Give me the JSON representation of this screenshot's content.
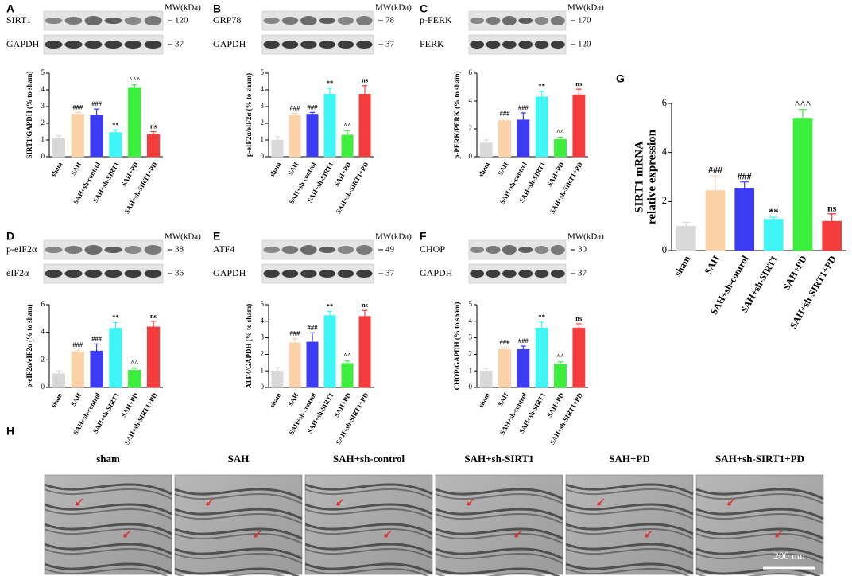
{
  "chart_data": [
    {
      "type": "bar",
      "panel": "A",
      "blot": {
        "mw_label": "MW(kDa)",
        "rows": [
          {
            "name": "SIRT1",
            "mw": 120
          },
          {
            "name": "GAPDH",
            "mw": 37
          }
        ]
      },
      "y_label": "SIRT1/GAPDH (% to sham)",
      "categories": [
        "sham",
        "SAH",
        "SAH+sh-control",
        "SAH+sh-SIRT1",
        "SAH+PD",
        "SAH+sh-SIRT1+PD"
      ],
      "values": [
        1.1,
        2.55,
        2.5,
        1.45,
        4.15,
        1.35
      ],
      "errors": [
        0.15,
        0.1,
        0.35,
        0.15,
        0.15,
        0.15
      ],
      "annotations": [
        null,
        "###",
        "###",
        "**",
        "^^^",
        "ns"
      ],
      "colors": [
        "#d9d9d9",
        "#fcd2a8",
        "#3c3cf5",
        "#3ff5f5",
        "#3cef3c",
        "#f53c3c"
      ],
      "ylim": [
        0,
        5
      ],
      "yticks": [
        0,
        1,
        2,
        3,
        4,
        5
      ]
    },
    {
      "type": "bar",
      "panel": "B",
      "blot": {
        "mw_label": "MW(kDa)",
        "rows": [
          {
            "name": "GRP78",
            "mw": 78
          },
          {
            "name": "GAPDH",
            "mw": 37
          }
        ]
      },
      "y_label": "p-eIF2α/eIF2α (% to sham)",
      "categories": [
        "sham",
        "SAH",
        "SAH+sh-control",
        "SAH+sh-SIRT1",
        "SAH+PD",
        "SAH+sh-SIRT1+PD"
      ],
      "values": [
        1.0,
        2.5,
        2.55,
        3.75,
        1.3,
        3.75
      ],
      "errors": [
        0.2,
        0.1,
        0.1,
        0.35,
        0.25,
        0.5
      ],
      "annotations": [
        null,
        "###",
        "###",
        "**",
        "^^",
        "ns"
      ],
      "colors": [
        "#d9d9d9",
        "#fcd2a8",
        "#3c3cf5",
        "#3ff5f5",
        "#3cef3c",
        "#f53c3c"
      ],
      "ylim": [
        0,
        5
      ],
      "yticks": [
        0,
        1,
        2,
        3,
        4,
        5
      ]
    },
    {
      "type": "bar",
      "panel": "C",
      "blot": {
        "mw_label": "MW(kDa)",
        "rows": [
          {
            "name": "p-PERK",
            "mw": 170
          },
          {
            "name": "PERK",
            "mw": 120
          }
        ]
      },
      "y_label": "p-PERK/PERK (% to sham)",
      "categories": [
        "sham",
        "SAH",
        "SAH+sh-control",
        "SAH+sh-SIRT1",
        "SAH+PD",
        "SAH+sh-SIRT1+PD"
      ],
      "values": [
        1.0,
        2.6,
        2.65,
        4.3,
        1.25,
        4.45
      ],
      "errors": [
        0.2,
        0.1,
        0.5,
        0.4,
        0.15,
        0.4
      ],
      "annotations": [
        null,
        "###",
        "###",
        "**",
        "^^",
        "ns"
      ],
      "colors": [
        "#d9d9d9",
        "#fcd2a8",
        "#3c3cf5",
        "#3ff5f5",
        "#3cef3c",
        "#f53c3c"
      ],
      "ylim": [
        0,
        6
      ],
      "yticks": [
        0,
        2,
        4,
        6
      ]
    },
    {
      "type": "bar",
      "panel": "D",
      "blot": {
        "mw_label": "MW(kDa)",
        "rows": [
          {
            "name": "p-eIF2α",
            "mw": 38
          },
          {
            "name": "eIF2α",
            "mw": 36
          }
        ]
      },
      "y_label": "p-eIF2α/eIF2α (% to sham)",
      "categories": [
        "sham",
        "SAH",
        "SAH+sh-control",
        "SAH+sh-SIRT1",
        "SAH+PD",
        "SAH+sh-SIRT1+PD"
      ],
      "values": [
        1.0,
        2.6,
        2.65,
        4.3,
        1.25,
        4.4
      ],
      "errors": [
        0.2,
        0.1,
        0.5,
        0.4,
        0.15,
        0.4
      ],
      "annotations": [
        null,
        "###",
        "###",
        "**",
        "^^",
        "ns"
      ],
      "colors": [
        "#d9d9d9",
        "#fcd2a8",
        "#3c3cf5",
        "#3ff5f5",
        "#3cef3c",
        "#f53c3c"
      ],
      "ylim": [
        0,
        6
      ],
      "yticks": [
        0,
        2,
        4,
        6
      ]
    },
    {
      "type": "bar",
      "panel": "E",
      "blot": {
        "mw_label": "MW(kDa)",
        "rows": [
          {
            "name": "ATF4",
            "mw": 49
          },
          {
            "name": "GAPDH",
            "mw": 37
          }
        ]
      },
      "y_label": "ATF4/GAPDH (% to sham)",
      "categories": [
        "sham",
        "SAH",
        "SAH+sh-control",
        "SAH+sh-SIRT1",
        "SAH+PD",
        "SAH+sh-SIRT1+PD"
      ],
      "values": [
        1.0,
        2.7,
        2.75,
        4.35,
        1.45,
        4.3
      ],
      "errors": [
        0.2,
        0.25,
        0.55,
        0.25,
        0.15,
        0.35
      ],
      "annotations": [
        null,
        "###",
        "###",
        "**",
        "^^",
        "ns"
      ],
      "colors": [
        "#d9d9d9",
        "#fcd2a8",
        "#3c3cf5",
        "#3ff5f5",
        "#3cef3c",
        "#f53c3c"
      ],
      "ylim": [
        0,
        5
      ],
      "yticks": [
        0,
        1,
        2,
        3,
        4,
        5
      ]
    },
    {
      "type": "bar",
      "panel": "F",
      "blot": {
        "mw_label": "MW(kDa)",
        "rows": [
          {
            "name": "CHOP",
            "mw": 30
          },
          {
            "name": "GAPDH",
            "mw": 37
          }
        ]
      },
      "y_label": "CHOP/GAPDH (% to sham)",
      "categories": [
        "sham",
        "SAH",
        "SAH+sh-control",
        "SAH+sh-SIRT1",
        "SAH+PD",
        "SAH+sh-SIRT1+PD"
      ],
      "values": [
        1.0,
        2.3,
        2.3,
        3.6,
        1.4,
        3.6
      ],
      "errors": [
        0.15,
        0.1,
        0.2,
        0.35,
        0.15,
        0.25
      ],
      "annotations": [
        null,
        "###",
        "###",
        "**",
        "^^",
        "ns"
      ],
      "colors": [
        "#d9d9d9",
        "#fcd2a8",
        "#3c3cf5",
        "#3ff5f5",
        "#3cef3c",
        "#f53c3c"
      ],
      "ylim": [
        0,
        5
      ],
      "yticks": [
        0,
        1,
        2,
        3,
        4,
        5
      ]
    },
    {
      "type": "bar",
      "panel": "G",
      "y_label": [
        "SIRT1 mRNA",
        "relative expression"
      ],
      "categories": [
        "sham",
        "SAH",
        "SAH+sh-control",
        "SAH+sh-SIRT1",
        "SAH+PD",
        "SAH+sh-SIRT1+PD"
      ],
      "values": [
        1.0,
        2.45,
        2.55,
        1.28,
        5.4,
        1.2
      ],
      "errors": [
        0.15,
        0.6,
        0.25,
        0.08,
        0.35,
        0.3
      ],
      "annotations": [
        null,
        "###",
        "###",
        "**",
        "^^^",
        "ns"
      ],
      "colors": [
        "#d9d9d9",
        "#fcd2a8",
        "#3c3cf5",
        "#3ff5f5",
        "#3cef3c",
        "#f53c3c"
      ],
      "ylim": [
        0,
        6
      ],
      "yticks": [
        0,
        2,
        4,
        6
      ]
    }
  ],
  "em_panel": {
    "label": "H",
    "titles": [
      "sham",
      "SAH",
      "SAH+sh-control",
      "SAH+sh-SIRT1",
      "SAH+PD",
      "SAH+sh-SIRT1+PD"
    ],
    "scale_bar": "200 nm"
  }
}
